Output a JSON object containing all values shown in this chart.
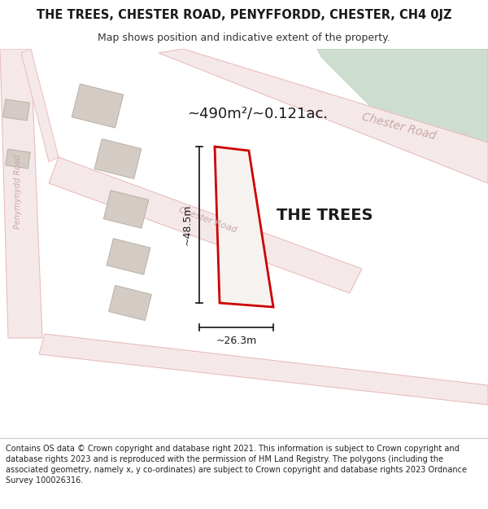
{
  "title_line1": "THE TREES, CHESTER ROAD, PENYFFORDD, CHESTER, CH4 0JZ",
  "title_line2": "Map shows position and indicative extent of the property.",
  "footer_text": "Contains OS data © Crown copyright and database right 2021. This information is subject to Crown copyright and database rights 2023 and is reproduced with the permission of HM Land Registry. The polygons (including the associated geometry, namely x, y co-ordinates) are subject to Crown copyright and database rights 2023 Ordnance Survey 100026316.",
  "area_label": "~490m²/~0.121ac.",
  "property_label": "THE TREES",
  "width_label": "~26.3m",
  "height_label": "~48.5m",
  "map_bg": "#f7f3ef",
  "road_color": "#e8b8b8",
  "road_fill": "#f5e8e8",
  "building_fill": "#d4ccC4",
  "building_edge": "#b8b0a8",
  "property_outline_color": "#cc0000",
  "property_fill": "#f5f2ef",
  "green_fill": "#cdddd0",
  "green_edge": "#b0ccb4",
  "title_fontsize": 10.5,
  "subtitle_fontsize": 9,
  "footer_fontsize": 7,
  "area_fontsize": 13,
  "property_fontsize": 14,
  "dim_fontsize": 9,
  "road_label_fontsize": 8,
  "road_label_color": "#c8a8a8",
  "peny_road_label_fontsize": 7,
  "dim_line_color": "#111111"
}
